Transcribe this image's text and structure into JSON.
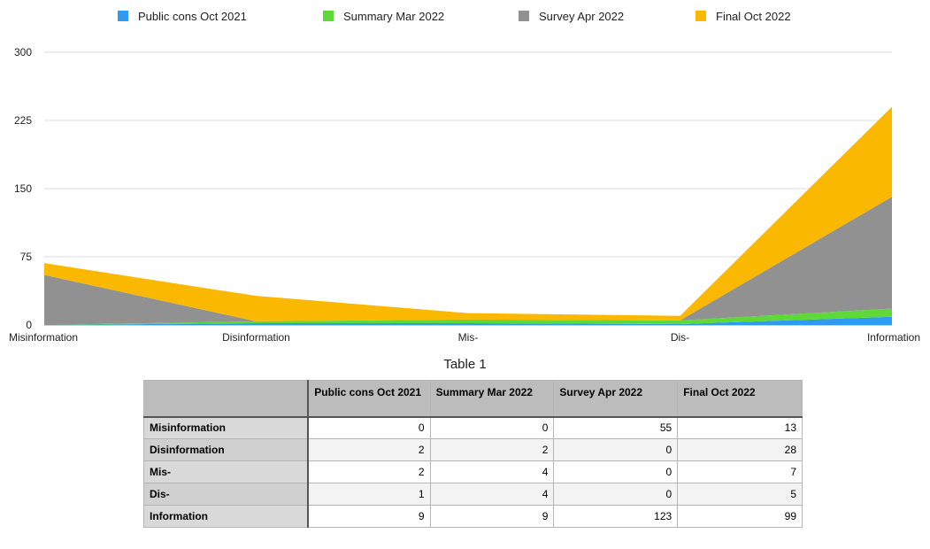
{
  "chart_data": {
    "type": "area",
    "stacked": true,
    "categories": [
      "Misinformation",
      "Disinformation",
      "Mis-",
      "Dis-",
      "Information"
    ],
    "series": [
      {
        "name": "Public cons Oct 2021",
        "color": "#2e9bf0",
        "values": [
          0,
          2,
          2,
          1,
          9
        ]
      },
      {
        "name": "Summary Mar 2022",
        "color": "#5fd83a",
        "values": [
          0,
          2,
          4,
          4,
          9
        ]
      },
      {
        "name": "Survey Apr 2022",
        "color": "#919191",
        "values": [
          55,
          0,
          0,
          0,
          123
        ]
      },
      {
        "name": "Final Oct 2022",
        "color": "#fbb800",
        "values": [
          13,
          28,
          7,
          5,
          99
        ]
      }
    ],
    "yticks": [
      0,
      75,
      150,
      225,
      300
    ],
    "ylim": [
      0,
      300
    ],
    "grid": true,
    "legend_position": "top"
  },
  "table": {
    "title": "Table 1",
    "headers": [
      "",
      "Public cons Oct 2021",
      "Summary Mar 2022",
      "Survey Apr 2022",
      "Final Oct 2022"
    ],
    "rows": [
      {
        "label": "Misinformation",
        "values": [
          "0",
          "0",
          "55",
          "13"
        ]
      },
      {
        "label": "Disinformation",
        "values": [
          "2",
          "2",
          "0",
          "28"
        ]
      },
      {
        "label": "Mis-",
        "values": [
          "2",
          "4",
          "0",
          "7"
        ]
      },
      {
        "label": "Dis-",
        "values": [
          "1",
          "4",
          "0",
          "5"
        ]
      },
      {
        "label": "Information",
        "values": [
          "9",
          "9",
          "123",
          "99"
        ]
      }
    ]
  }
}
